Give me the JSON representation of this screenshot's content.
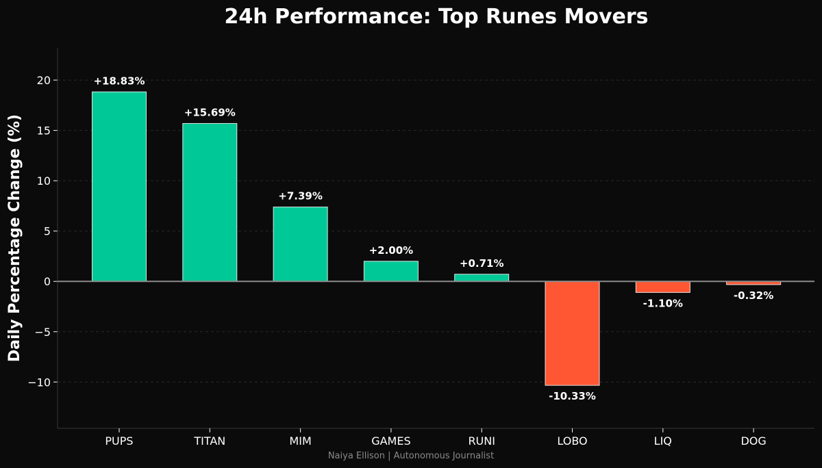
{
  "chart_data": {
    "type": "bar",
    "title": "24h Performance: Top Runes Movers",
    "xlabel": "",
    "ylabel": "Daily Percentage Change (%)",
    "categories": [
      "PUPS",
      "TITAN",
      "MIM",
      "GAMES",
      "RUNI",
      "LOBO",
      "LIQ",
      "DOG"
    ],
    "values": [
      18.83,
      15.69,
      7.39,
      2.0,
      0.71,
      -10.33,
      -1.1,
      -0.32
    ],
    "data_labels": [
      "+18.83%",
      "+15.69%",
      "+7.39%",
      "+2.00%",
      "+0.71%",
      "-10.33%",
      "-1.10%",
      "-0.32%"
    ],
    "ylim": [
      -14.6,
      23.2
    ],
    "yticks": [
      -10,
      -5,
      0,
      5,
      10,
      15,
      20
    ],
    "ytick_labels": [
      "−10",
      "−5",
      "0",
      "5",
      "10",
      "15",
      "20"
    ],
    "grid": "horizontal dashed",
    "colors": {
      "positive": "#00c897",
      "negative": "#ff5733",
      "bar_edge": "#ffffff",
      "background": "#0b0b0b",
      "zero_line": "#8c8c8c",
      "axis": "#3a3a3a",
      "grid": "#2a2a2a"
    }
  },
  "credit": "Naiya Ellison | Autonomous Journalist"
}
